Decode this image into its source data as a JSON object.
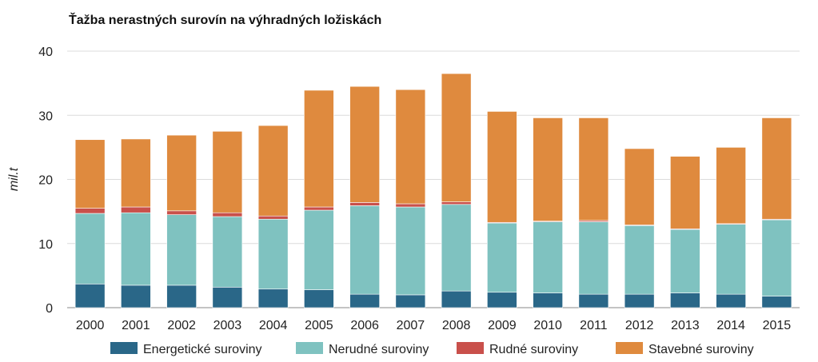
{
  "chart_data": {
    "type": "bar",
    "stacked": true,
    "title": "Ťažba nerastných surovín na výhradných ložiskách",
    "xlabel": "",
    "ylabel": "mil.t",
    "ylim": [
      0,
      40
    ],
    "yticks": [
      0,
      10,
      20,
      30,
      40
    ],
    "grid": true,
    "legend_position": "bottom",
    "categories": [
      "2000",
      "2001",
      "2002",
      "2003",
      "2004",
      "2005",
      "2006",
      "2007",
      "2008",
      "2009",
      "2010",
      "2011",
      "2012",
      "2013",
      "2014",
      "2015"
    ],
    "series": [
      {
        "name": "Energetické suroviny",
        "color": "#2a6788",
        "values": [
          3.7,
          3.5,
          3.5,
          3.2,
          2.9,
          2.8,
          2.1,
          2.0,
          2.6,
          2.4,
          2.3,
          2.1,
          2.1,
          2.3,
          2.1,
          1.8
        ]
      },
      {
        "name": "Nerudné suroviny",
        "color": "#7fc2c0",
        "values": [
          11.0,
          11.3,
          11.0,
          11.0,
          10.9,
          12.4,
          13.8,
          13.7,
          13.5,
          10.8,
          11.1,
          11.3,
          10.7,
          9.9,
          10.9,
          11.9
        ]
      },
      {
        "name": "Rudné suroviny",
        "color": "#c9504b",
        "values": [
          0.8,
          0.9,
          0.6,
          0.6,
          0.5,
          0.5,
          0.5,
          0.5,
          0.4,
          0.1,
          0.1,
          0.2,
          0.1,
          0.1,
          0.1,
          0.1
        ]
      },
      {
        "name": "Stavebné suroviny",
        "color": "#df8a3e",
        "values": [
          10.7,
          10.6,
          11.8,
          12.7,
          14.1,
          18.2,
          18.1,
          17.8,
          20.0,
          17.3,
          16.1,
          16.0,
          11.9,
          11.3,
          11.9,
          15.8
        ]
      }
    ]
  }
}
